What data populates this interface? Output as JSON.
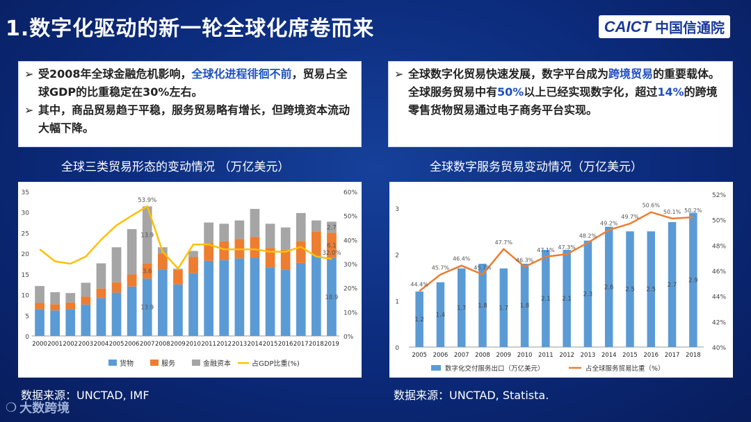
{
  "header": {
    "title": "1.数字化驱动的新一轮全球化席卷而来",
    "logo_en": "CAICT",
    "logo_cn": "中国信通院"
  },
  "left_box": {
    "bullet1_a": "受2008年全球金融危机影响，",
    "bullet1_b": "全球化进程徘徊不前",
    "bullet1_c": "，贸易占全球GDP的比重稳定在30%左右。",
    "bullet2": "其中，商品贸易趋于平稳，服务贸易略有增长，但跨境资本流动大幅下降。"
  },
  "right_box": {
    "p1a": "全球数字化贸易快速发展，数字平台成为",
    "p1b": "跨境贸易",
    "p1c": "的重要载体。全球服务贸易中有",
    "p1d": "50%",
    "p1e": "以上已经实现数字化，超过",
    "p1f": "14%",
    "p1g": "的跨境零售货物贸易通过电子商务平台实现。"
  },
  "left_subtitle": "全球三类贸易形态的变动情况 （万亿美元）",
  "right_subtitle": "全球数字服务贸易变动情况（万亿美元）",
  "left_source": "数据来源：UNCTAD, IMF",
  "right_source": "数据来源：UNCTAD, Statista.",
  "watermark": "大数跨境",
  "chart_data": [
    {
      "type": "bar",
      "stacked": true,
      "categories": [
        "2000",
        "2001",
        "2002",
        "2003",
        "2004",
        "2005",
        "2006",
        "2007",
        "2008",
        "2009",
        "2010",
        "2011",
        "2012",
        "2013",
        "2014",
        "2015",
        "2016",
        "2017",
        "2018",
        "2019"
      ],
      "series": [
        {
          "name": "货物",
          "color": "#5b9bd5",
          "values": [
            6.5,
            6.2,
            6.5,
            7.6,
            9.2,
            10.5,
            12,
            13.9,
            16,
            12.5,
            15.2,
            18.2,
            18.4,
            18.8,
            19,
            16.5,
            16,
            17.7,
            19.5,
            18.9
          ]
        },
        {
          "name": "服务",
          "color": "#ed7d31",
          "values": [
            1.5,
            1.5,
            1.6,
            1.9,
            2.3,
            2.5,
            2.9,
            3.6,
            4,
            3.5,
            3.9,
            4.3,
            4.5,
            4.7,
            5,
            4.8,
            4.9,
            5.3,
            5.8,
            6.1
          ]
        },
        {
          "name": "金融资本",
          "color": "#a5a5a5",
          "values": [
            4.1,
            2.9,
            2.3,
            3.4,
            6.1,
            8.5,
            11,
            13.9,
            1.5,
            0.3,
            1.5,
            5,
            4.3,
            4.5,
            6.8,
            5.9,
            5.4,
            6.8,
            2.7,
            2.7
          ]
        }
      ],
      "line": {
        "name": "占GDP比重(%)",
        "color": "#ffc000",
        "values": [
          36,
          31,
          30,
          33,
          40,
          46,
          50,
          53.9,
          35,
          28,
          38,
          38,
          36,
          36,
          36,
          35,
          35,
          37,
          33,
          32
        ]
      },
      "labels": [
        {
          "index": 7,
          "series": "line",
          "text": "53.9%"
        },
        {
          "index": 7,
          "series": "金融资本",
          "text": "13.9"
        },
        {
          "index": 7,
          "series": "服务",
          "text": "3.6"
        },
        {
          "index": 7,
          "series": "货物",
          "text": "13.9"
        },
        {
          "index": 19,
          "series": "金融资本",
          "text": "2.7"
        },
        {
          "index": 19,
          "series": "服务",
          "text": "6.1"
        },
        {
          "index": 19,
          "series": "line",
          "text": "32.0%"
        },
        {
          "index": 19,
          "series": "货物",
          "text": "18.9"
        }
      ],
      "ylim": [
        0,
        35
      ],
      "yticks": [
        0,
        5,
        10,
        15,
        20,
        25,
        30,
        35
      ],
      "y2lim": [
        0,
        60
      ],
      "y2ticks": [
        "0%",
        "10%",
        "20%",
        "30%",
        "40%",
        "50%",
        "60%"
      ],
      "legend": [
        "货物",
        "服务",
        "金融资本",
        "占GDP比重(%)"
      ]
    },
    {
      "type": "bar",
      "categories": [
        "2005",
        "2006",
        "2007",
        "2008",
        "2009",
        "2010",
        "2011",
        "2012",
        "2013",
        "2014",
        "2015",
        "2016",
        "2017",
        "2018"
      ],
      "series": [
        {
          "name": "数字化交付服务出口（万亿美元）",
          "color": "#5b9bd5",
          "values": [
            1.2,
            1.4,
            1.7,
            1.8,
            1.7,
            1.8,
            2.1,
            2.1,
            2.3,
            2.6,
            2.5,
            2.5,
            2.7,
            2.9
          ]
        }
      ],
      "bar_labels": [
        "1.2",
        "1.4",
        "1.7",
        "1.8",
        "1.7",
        "1.8",
        "2.1",
        "2.1",
        "2.3",
        "2.6",
        "2.5",
        "2.5",
        "2.7",
        "2.9"
      ],
      "line": {
        "name": "占全球服务贸易比重（%）",
        "color": "#ed7d31",
        "values": [
          44.4,
          45.7,
          46.4,
          45.7,
          47.7,
          46.3,
          47.1,
          47.3,
          48.2,
          49.2,
          49.7,
          50.6,
          50.1,
          50.2
        ],
        "labels": [
          "44.4%",
          "45.7%",
          "46.4%",
          "45.7%",
          "47.7%",
          "46.3%",
          "47.1%",
          "47.3%",
          "48.2%",
          "49.2%",
          "49.7%",
          "50.6%",
          "50.1%",
          "50.2%"
        ]
      },
      "ylim": [
        0,
        3.3
      ],
      "yticks": [
        "0",
        "1",
        "2",
        "3"
      ],
      "y2lim": [
        40,
        52
      ],
      "y2ticks": [
        "40%",
        "42%",
        "44%",
        "46%",
        "48%",
        "50%",
        "52%"
      ],
      "legend": [
        "数字化交付服务出口（万亿美元）",
        "占全球服务贸易比重（%）"
      ]
    }
  ]
}
